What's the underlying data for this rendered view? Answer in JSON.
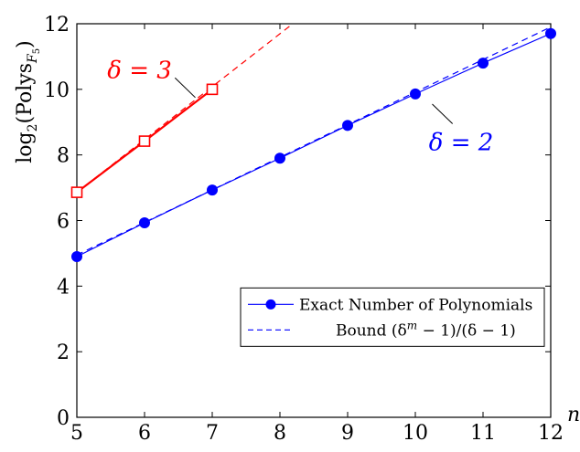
{
  "chart_data": {
    "type": "line",
    "title": "",
    "xlabel": "n",
    "ylabel": "log2(PolysF5)",
    "ylabel_parts": {
      "prefix": "log",
      "base": "2",
      "open": "(Polys",
      "sub": "F",
      "subsub": "5",
      "close": ")"
    },
    "xlim": [
      5,
      12
    ],
    "ylim": [
      0,
      12
    ],
    "xticks": [
      5,
      6,
      7,
      8,
      9,
      10,
      11,
      12
    ],
    "yticks": [
      0,
      2,
      4,
      6,
      8,
      10,
      12
    ],
    "grid": false,
    "legend_position": "bottom-right",
    "series": [
      {
        "name": "Exact Number of Polynomials",
        "group": "delta2",
        "style": "solid",
        "marker": "circle",
        "color": "#0000ff",
        "x": [
          5,
          6,
          7,
          8,
          9,
          10,
          11,
          12
        ],
        "y": [
          4.9,
          5.93,
          6.93,
          7.9,
          8.9,
          9.86,
          10.8,
          11.7
        ]
      },
      {
        "name": "Bound (δm − 1)/(δ − 1)",
        "group": "delta2",
        "style": "dashed",
        "color": "#0000ff",
        "x": [
          5,
          12
        ],
        "y": [
          4.95,
          11.9
        ]
      },
      {
        "group": "delta3",
        "style": "solid",
        "marker": "square",
        "color": "#ff0000",
        "x": [
          5,
          6,
          7
        ],
        "y": [
          6.86,
          8.42,
          10.0
        ]
      },
      {
        "group": "delta3",
        "style": "dashed",
        "color": "#ff0000",
        "x": [
          5,
          8.19
        ],
        "y": [
          6.86,
          12.0
        ]
      }
    ],
    "annotations": [
      {
        "text": "δ = 3",
        "color": "#ff0000"
      },
      {
        "text": "δ = 2",
        "color": "#0000ff"
      }
    ],
    "legend": {
      "entries": [
        {
          "label": "Exact Number of Polynomials",
          "style": "solid-circle"
        },
        {
          "prefix": "Bound (δ",
          "sup": "m",
          "suffix": " − 1)/(δ − 1)",
          "style": "dashed"
        }
      ]
    }
  }
}
